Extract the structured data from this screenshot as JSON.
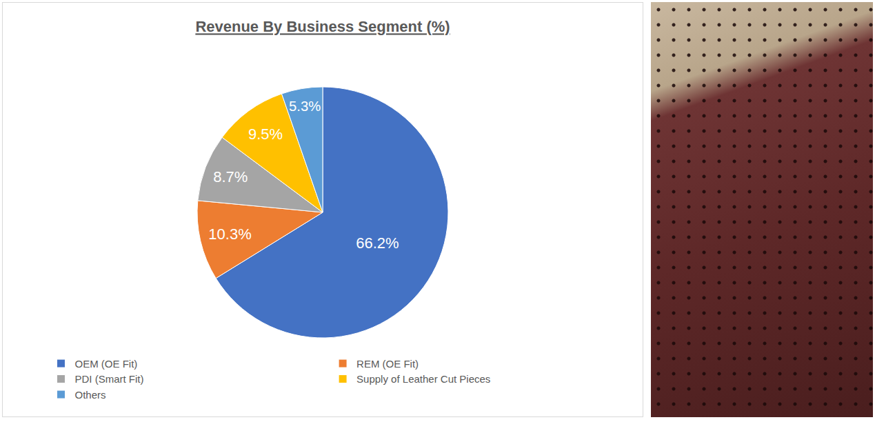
{
  "chart_data": {
    "type": "pie",
    "title": "Revenue By Business Segment (%)",
    "categories": [
      "OEM (OE Fit)",
      "REM (OE Fit)",
      "PDI (Smart Fit)",
      "Supply of Leather Cut Pieces",
      "Others"
    ],
    "values": [
      66.2,
      10.3,
      8.7,
      9.5,
      5.3
    ],
    "value_labels": [
      "66.2%",
      "10.3%",
      "8.7%",
      "9.5%",
      "5.3%"
    ],
    "colors": [
      "#4472c4",
      "#ed7d31",
      "#a5a5a5",
      "#ffc000",
      "#5b9bd5"
    ],
    "data_labels": true,
    "legend": "bottom"
  }
}
